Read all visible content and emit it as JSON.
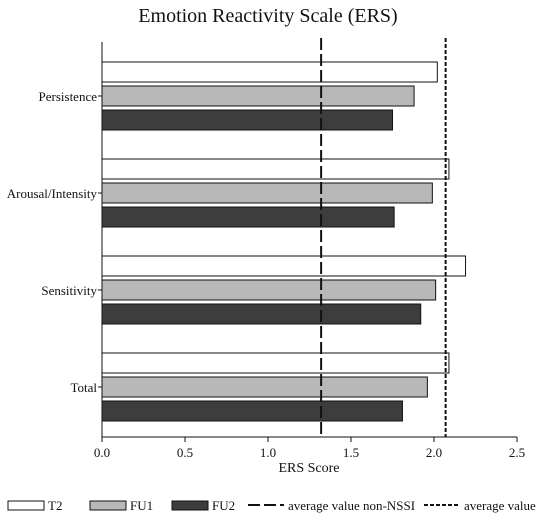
{
  "chart_data": {
    "type": "bar",
    "orientation": "horizontal",
    "title": "Emotion Reactivity Scale (ERS)",
    "xlabel": "ERS Score",
    "ylabel": "",
    "xlim": [
      0,
      2.5
    ],
    "xticks": [
      "0.0",
      "0.5",
      "1.0",
      "1.5",
      "2.0",
      "2.5"
    ],
    "categories": [
      "Persistence",
      "Arousal/Intensity",
      "Sensitivity",
      "Total"
    ],
    "series": [
      {
        "name": "T2",
        "color": "#ffffff",
        "values": [
          2.02,
          2.09,
          2.19,
          2.09
        ]
      },
      {
        "name": "FU1",
        "color": "#b8b8b8",
        "values": [
          1.88,
          1.99,
          2.01,
          1.96
        ]
      },
      {
        "name": "FU2",
        "color": "#3d3d3d",
        "values": [
          1.75,
          1.76,
          1.92,
          1.81
        ]
      }
    ],
    "reference_lines": [
      {
        "name": "average value non-NSSI",
        "value": 1.32,
        "style": "long-dash"
      },
      {
        "name": "average value NSSI",
        "value": 2.07,
        "style": "short-dash"
      }
    ],
    "grid": false,
    "legend_position": "bottom"
  }
}
